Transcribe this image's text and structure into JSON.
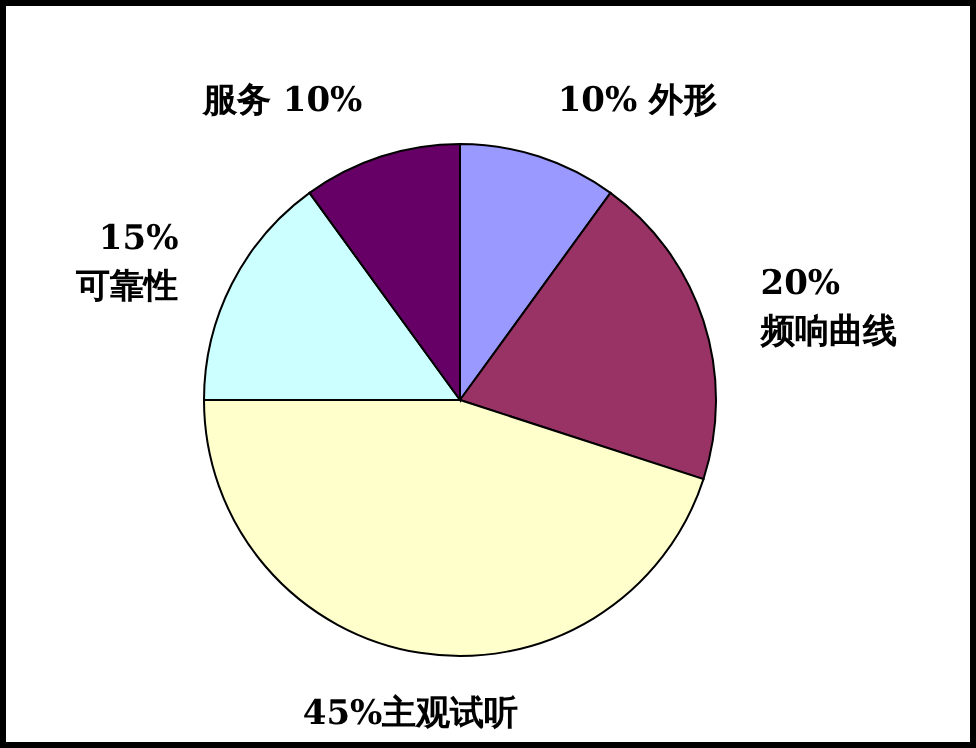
{
  "chart_data": {
    "type": "pie",
    "categories": [
      "外形",
      "频响曲线",
      "主观试听",
      "可靠性",
      "服务"
    ],
    "values": [
      10,
      20,
      45,
      15,
      10
    ],
    "value_labels": [
      "10%",
      "20%",
      "45%",
      "15%",
      "10%"
    ],
    "colors": [
      "#9999ff",
      "#993366",
      "#ffffcc",
      "#ccffff",
      "#660066"
    ],
    "data_labels": true
  }
}
